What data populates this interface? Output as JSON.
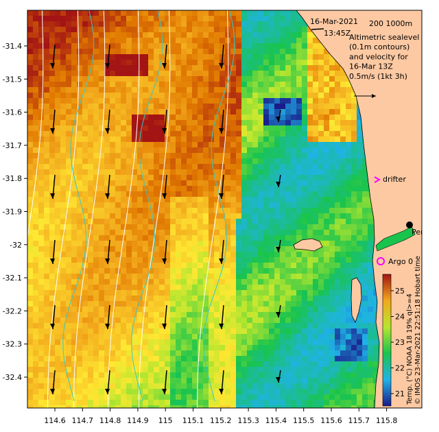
{
  "map": {
    "date_line1": "16-Mar-2021",
    "date_line2": "13:45Z",
    "depth_label": "200  1000m",
    "legend_lines": [
      "Altimetric sealevel",
      "(0.1m contours)",
      "and velocity for",
      "16-Mar 13Z",
      "0.5m/s (1kt 3h)"
    ],
    "drifter_label": "drifter",
    "argo_label": "Argo 0",
    "city_label": "Perth",
    "hobart_label": "Hobart tim",
    "credit": "© IMOS 23-Mar-2021 22:51:18 Hobart time",
    "colorbar_label": "Temp. (°C) NOAA 18 19% ql>=4",
    "colorbar_ticks": [
      "21",
      "22",
      "23",
      "24",
      "25"
    ],
    "x_ticks": [
      "114.6",
      "114.7",
      "114.8",
      "114.9",
      "115",
      "115.1",
      "115.2",
      "115.3",
      "115.4",
      "115.5",
      "115.6",
      "115.7",
      "115.8"
    ],
    "y_ticks": [
      "-31.4",
      "-31.5",
      "-31.6",
      "-31.7",
      "-31.8",
      "-31.9",
      "-32",
      "-32.1",
      "-32.2",
      "-32.3",
      "-32.4"
    ],
    "colors": {
      "land": "#fcc9a3",
      "cold": "#1a1a8a",
      "cool": "#1fb3e6",
      "mid": "#19c44d",
      "warm": "#ffe833",
      "hot": "#e67a00",
      "hottest": "#a31414",
      "drifter": "#ff00ff"
    }
  }
}
